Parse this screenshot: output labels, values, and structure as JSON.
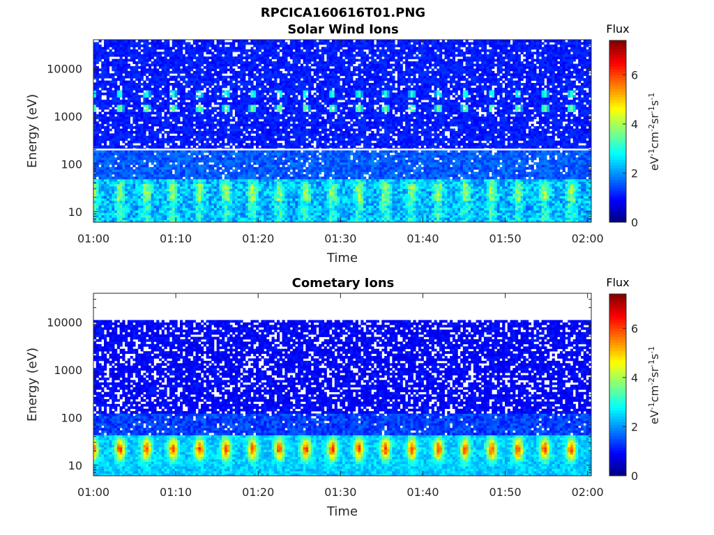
{
  "figure": {
    "title": "RPCICA160616T01.PNG"
  },
  "colors": {
    "colormap": "jet",
    "background": "#ffffff",
    "axis": "#262626"
  },
  "chart_data": [
    {
      "type": "heatmap",
      "title": "Solar Wind Ions",
      "xlabel": "Time",
      "ylabel": "Energy (eV)",
      "x_scale": "time",
      "y_scale": "log",
      "x_ticks": [
        "01:00",
        "01:10",
        "01:20",
        "01:30",
        "01:40",
        "01:50",
        "02:00"
      ],
      "y_ticks": [
        {
          "value": 10,
          "label": "10"
        },
        {
          "value": 100,
          "label": "100"
        },
        {
          "value": 1000,
          "label": "1000"
        },
        {
          "value": 10000,
          "label": "10000"
        }
      ],
      "xlim": [
        "01:00",
        "02:00"
      ],
      "ylim": [
        6,
        40000
      ],
      "data_energy_range": [
        6,
        40000
      ],
      "white_line_energy": 200,
      "blob_period_minutes": 3.2,
      "features": [
        {
          "energy": 1500,
          "min": 3.5
        },
        {
          "energy": 3000,
          "min": 3.0
        },
        {
          "energy": 25,
          "min": 3.0
        }
      ],
      "colorbar": {
        "title": "Flux",
        "label": "eV-1cm-2sr-1s-1",
        "range": [
          0,
          7.4
        ],
        "ticks": [
          0,
          2,
          4,
          6
        ]
      }
    },
    {
      "type": "heatmap",
      "title": "Cometary Ions",
      "xlabel": "Time",
      "ylabel": "Energy (eV)",
      "x_scale": "time",
      "y_scale": "log",
      "x_ticks": [
        "01:00",
        "01:10",
        "01:20",
        "01:30",
        "01:40",
        "01:50",
        "02:00"
      ],
      "y_ticks": [
        {
          "value": 10,
          "label": "10"
        },
        {
          "value": 100,
          "label": "100"
        },
        {
          "value": 1000,
          "label": "1000"
        },
        {
          "value": 10000,
          "label": "10000"
        }
      ],
      "xlim": [
        "01:00",
        "02:00"
      ],
      "ylim": [
        6,
        40000
      ],
      "data_energy_range": [
        6,
        11000
      ],
      "blob_period_minutes": 3.2,
      "features": [
        {
          "energy": 22,
          "min": 6.5
        }
      ],
      "colorbar": {
        "title": "Flux",
        "label": "eV-1cm-2sr-1s-1",
        "range": [
          0,
          7.4
        ],
        "ticks": [
          0,
          2,
          4,
          6
        ]
      }
    }
  ]
}
